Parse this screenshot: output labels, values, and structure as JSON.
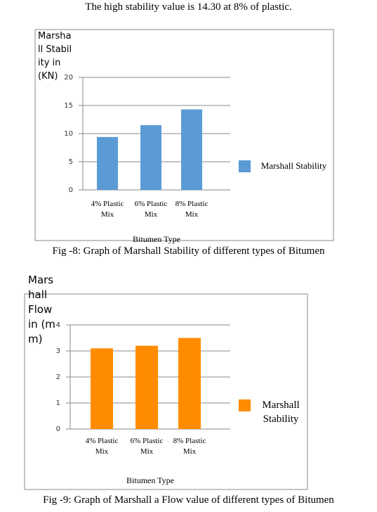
{
  "intro": "The high stability value is 14.30 at 8% of plastic.",
  "chart_data": [
    {
      "type": "bar",
      "y_label": "Marshall Stability in (KN)",
      "x_label": "Bitumen Type",
      "categories": [
        "4% Plastic Mix",
        "6% Plastic Mix",
        "8% Plastic Mix"
      ],
      "series": [
        {
          "name": "Marshall Stability",
          "color": "#5b9bd5",
          "values": [
            9.4,
            11.5,
            14.3
          ]
        }
      ],
      "ylim": [
        0,
        20
      ],
      "yticks": [
        0,
        5,
        10,
        15,
        20
      ],
      "grid": true,
      "legend": "right",
      "caption": "Fig -8: Graph of Marshall Stability of different types of Bitumen"
    },
    {
      "type": "bar",
      "y_label": "Marshall Flow in (mm)",
      "x_label": "Bitumen Type",
      "categories": [
        "4% Plastic Mix",
        "6% Plastic Mix",
        "8% Plastic Mix"
      ],
      "series": [
        {
          "name": "Marshall Stability",
          "color": "#ff8c00",
          "values": [
            3.1,
            3.2,
            3.5
          ]
        }
      ],
      "ylim": [
        0,
        4
      ],
      "yticks": [
        0,
        1,
        2,
        3,
        4
      ],
      "grid": true,
      "legend": "right",
      "caption": "Fig -9: Graph of Marshall a Flow value of different types of Bitumen"
    }
  ]
}
